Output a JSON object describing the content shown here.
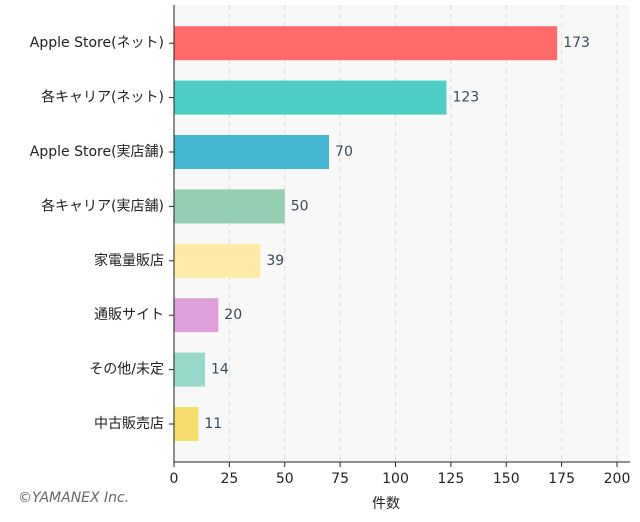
{
  "chart_data": {
    "type": "bar",
    "orientation": "horizontal",
    "categories": [
      "Apple Store(ネット)",
      "各キャリア(ネット)",
      "Apple Store(実店舗)",
      "各キャリア(実店舗)",
      "家電量販店",
      "通販サイト",
      "その他/未定",
      "中古販売店"
    ],
    "values": [
      173,
      123,
      70,
      50,
      39,
      20,
      14,
      11
    ],
    "colors": [
      "#ff6b6b",
      "#4ecdc4",
      "#45b7d1",
      "#96ceb4",
      "#ffeaa7",
      "#dda0dd",
      "#98d8c8",
      "#f7dc6f"
    ],
    "xlabel": "件数",
    "xlim": [
      0,
      200
    ],
    "xticks": [
      0,
      25,
      50,
      75,
      100,
      125,
      150,
      175,
      200
    ],
    "grid": true,
    "watermark": "©YAMANEX Inc."
  }
}
